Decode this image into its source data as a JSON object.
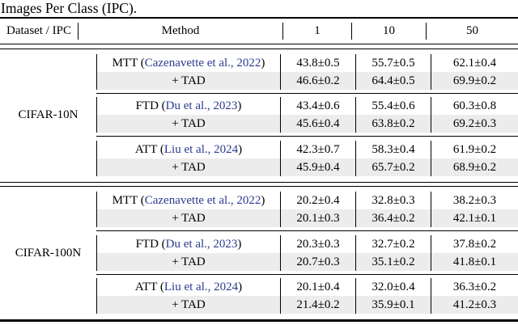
{
  "caption": "Images Per Class (IPC).",
  "header": {
    "dataset_ipc": "Dataset / IPC",
    "method": "Method",
    "ipc": [
      "1",
      "10",
      "50"
    ]
  },
  "labels": {
    "tad": "+ TAD"
  },
  "punct": {
    "open": " (",
    "close": ")"
  },
  "colors": {
    "citation_blue": "#2a3b8f",
    "row_shade": "#ececec",
    "rule": "#000000"
  },
  "blocks": [
    {
      "dataset": "CIFAR-10N",
      "groups": [
        {
          "method": "MTT",
          "citation": "Cazenavette et al., 2022",
          "baseline": [
            "43.8±0.5",
            "55.7±0.5",
            "62.1±0.4"
          ],
          "tad": [
            "46.6±0.2",
            "64.4±0.5",
            "69.9±0.2"
          ]
        },
        {
          "method": "FTD",
          "citation": "Du et al., 2023",
          "baseline": [
            "43.4±0.6",
            "55.4±0.6",
            "60.3±0.8"
          ],
          "tad": [
            "45.6±0.4",
            "63.8±0.2",
            "69.2±0.3"
          ]
        },
        {
          "method": "ATT",
          "citation": "Liu et al., 2024",
          "baseline": [
            "42.3±0.7",
            "58.3±0.4",
            "61.9±0.2"
          ],
          "tad": [
            "45.9±0.4",
            "65.7±0.2",
            "68.9±0.2"
          ]
        }
      ]
    },
    {
      "dataset": "CIFAR-100N",
      "groups": [
        {
          "method": "MTT",
          "citation": "Cazenavette et al., 2022",
          "baseline": [
            "20.2±0.4",
            "32.8±0.3",
            "38.2±0.3"
          ],
          "tad": [
            "20.1±0.3",
            "36.4±0.2",
            "42.1±0.1"
          ]
        },
        {
          "method": "FTD",
          "citation": "Du et al., 2023",
          "baseline": [
            "20.3±0.3",
            "32.7±0.2",
            "37.8±0.2"
          ],
          "tad": [
            "20.7±0.3",
            "35.1±0.2",
            "41.8±0.1"
          ]
        },
        {
          "method": "ATT",
          "citation": "Liu et al., 2024",
          "baseline": [
            "20.1±0.4",
            "32.0±0.4",
            "36.3±0.2"
          ],
          "tad": [
            "21.4±0.2",
            "35.9±0.1",
            "41.2±0.3"
          ]
        }
      ]
    }
  ]
}
